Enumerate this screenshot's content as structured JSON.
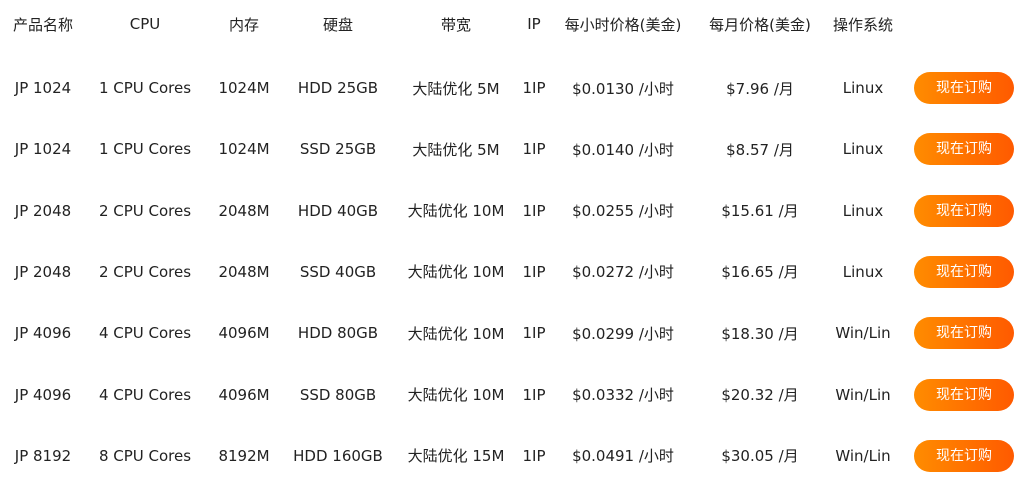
{
  "headers": [
    "产品名称",
    "CPU",
    "内存",
    "硬盘",
    "带宽",
    "IP",
    "每小时价格(美金)",
    "每月价格(美金)",
    "操作系统"
  ],
  "order_label": "现在订购",
  "accent_color": "#ff7300",
  "rows": [
    [
      "JP 1024",
      "1 CPU Cores",
      "1024M",
      "HDD 25GB",
      "大陆优化 5M",
      "1IP",
      "$0.0130 /小时",
      "$7.96 /月",
      "Linux"
    ],
    [
      "JP 1024",
      "1 CPU Cores",
      "1024M",
      "SSD 25GB",
      "大陆优化 5M",
      "1IP",
      "$0.0140 /小时",
      "$8.57 /月",
      "Linux"
    ],
    [
      "JP 2048",
      "2 CPU Cores",
      "2048M",
      "HDD 40GB",
      "大陆优化 10M",
      "1IP",
      "$0.0255 /小时",
      "$15.61 /月",
      "Linux"
    ],
    [
      "JP 2048",
      "2 CPU Cores",
      "2048M",
      "SSD 40GB",
      "大陆优化 10M",
      "1IP",
      "$0.0272 /小时",
      "$16.65 /月",
      "Linux"
    ],
    [
      "JP 4096",
      "4 CPU Cores",
      "4096M",
      "HDD 80GB",
      "大陆优化 10M",
      "1IP",
      "$0.0299 /小时",
      "$18.30 /月",
      "Win/Lin"
    ],
    [
      "JP 4096",
      "4 CPU Cores",
      "4096M",
      "SSD 80GB",
      "大陆优化 10M",
      "1IP",
      "$0.0332 /小时",
      "$20.32 /月",
      "Win/Lin"
    ],
    [
      "JP 8192",
      "8 CPU Cores",
      "8192M",
      "HDD 160GB",
      "大陆优化 15M",
      "1IP",
      "$0.0491 /小时",
      "$30.05 /月",
      "Win/Lin"
    ]
  ]
}
